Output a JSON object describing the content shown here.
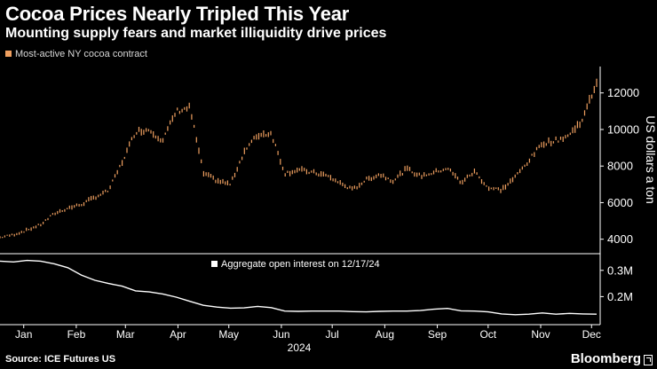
{
  "chart_data": [
    {
      "type": "line",
      "style": "ohlc-bars",
      "title": "Cocoa Prices Nearly Tripled This Year",
      "subtitle": "Mounting supply fears and market illiquidity drive prices",
      "legend": {
        "label": "Most-active NY cocoa contract",
        "color": "#f0a060",
        "placement": "top-left"
      },
      "ylabel": "US dollars a ton",
      "ylim": [
        3500,
        13200
      ],
      "yticks": [
        4000,
        6000,
        8000,
        10000,
        12000
      ],
      "ytick_labels": [
        "4000",
        "6000",
        "8000",
        "10000",
        "12000"
      ],
      "series": [
        {
          "name": "Most-active NY cocoa contract",
          "x": [
            0,
            8,
            16,
            24,
            32,
            40,
            48,
            56,
            64,
            72,
            80,
            88,
            96,
            104,
            112,
            120,
            128,
            136,
            144,
            152,
            160,
            168,
            176,
            184,
            192,
            200,
            208,
            216,
            224,
            232,
            240,
            248,
            256,
            264,
            272,
            280,
            288,
            296,
            304,
            312,
            320,
            328,
            336,
            344,
            352
          ],
          "values": [
            4100,
            4250,
            4500,
            4800,
            5400,
            5700,
            5900,
            6300,
            6650,
            8200,
            9900,
            10000,
            9400,
            11000,
            11200,
            7600,
            7200,
            7000,
            8800,
            9700,
            9800,
            7600,
            7800,
            7650,
            7500,
            7100,
            6700,
            7250,
            7550,
            7200,
            7850,
            7450,
            7650,
            7900,
            7100,
            7700,
            6800,
            6700,
            7400,
            8300,
            9250,
            9400,
            9700,
            10600,
            12600
          ]
        }
      ]
    },
    {
      "type": "line",
      "title": "",
      "legend": {
        "label": "Aggregate open interest on 12/17/24",
        "color": "#ffffff",
        "placement": "top-center"
      },
      "ylim": [
        0.1,
        0.35
      ],
      "yticks": [
        0.2,
        0.3
      ],
      "ytick_labels": [
        "0.2M",
        "0.3M"
      ],
      "series": [
        {
          "name": "Aggregate open interest on 12/17/24",
          "x": [
            0,
            8,
            16,
            24,
            32,
            40,
            48,
            56,
            64,
            72,
            80,
            88,
            96,
            104,
            112,
            120,
            128,
            136,
            144,
            152,
            160,
            168,
            176,
            184,
            192,
            200,
            208,
            216,
            224,
            232,
            240,
            248,
            256,
            264,
            272,
            280,
            288,
            296,
            304,
            312,
            320,
            328,
            336,
            344,
            352
          ],
          "values": [
            0.335,
            0.332,
            0.338,
            0.335,
            0.325,
            0.31,
            0.282,
            0.262,
            0.25,
            0.24,
            0.222,
            0.218,
            0.21,
            0.198,
            0.182,
            0.167,
            0.16,
            0.156,
            0.157,
            0.163,
            0.158,
            0.145,
            0.144,
            0.145,
            0.145,
            0.145,
            0.143,
            0.142,
            0.144,
            0.145,
            0.145,
            0.147,
            0.152,
            0.155,
            0.146,
            0.145,
            0.142,
            0.134,
            0.131,
            0.133,
            0.138,
            0.133,
            0.136,
            0.134,
            0.133
          ]
        }
      ]
    }
  ],
  "x_axis": {
    "domain": [
      0,
      352
    ],
    "month_labels": [
      "Jan",
      "Feb",
      "Mar",
      "Apr",
      "May",
      "Jun",
      "Jul",
      "Aug",
      "Sep",
      "Oct",
      "Nov",
      "Dec"
    ],
    "month_positions": [
      14,
      45,
      74,
      105,
      135,
      166,
      196,
      227,
      258,
      288,
      319,
      349
    ],
    "year_label": "2024"
  },
  "footer": {
    "source": "Source: ICE Futures US",
    "brand": "Bloomberg"
  }
}
